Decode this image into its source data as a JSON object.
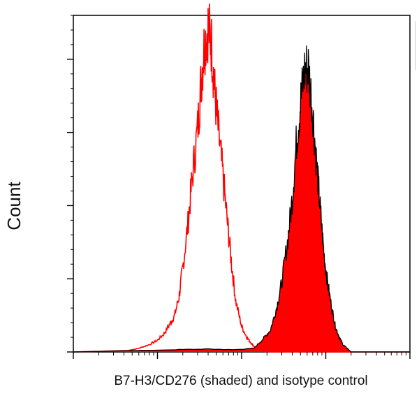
{
  "chart_data": {
    "type": "area",
    "title": "",
    "xlabel": "B7-H3/CD276 (shaded) and isotype control",
    "ylabel": "Count",
    "x_scale": "log",
    "xlim": [
      0.1,
      1000
    ],
    "ylim": [
      0,
      460
    ],
    "grid": false,
    "legend": "none",
    "colors": {
      "shaded": "#ff0000",
      "shaded_outline": "#000000",
      "isotype": "#ff0000",
      "axis": "#000000"
    },
    "series": [
      {
        "style": "outline",
        "color": "#ff0000",
        "x": [
          0.1,
          0.45,
          0.6,
          0.8,
          1.0,
          1.2,
          1.4,
          1.6,
          1.8,
          2.0,
          2.3,
          2.6,
          3.0,
          3.3,
          3.6,
          4.0,
          4.4,
          4.8,
          5.3,
          6.0,
          6.8,
          7.6,
          8.5,
          10.0,
          11.5,
          13.0,
          14.5,
          16.0,
          20.0,
          100.0,
          1000.0
        ],
        "y": [
          0,
          2,
          5,
          10,
          16,
          25,
          38,
          50,
          75,
          115,
          175,
          240,
          305,
          370,
          420,
          445,
          420,
          355,
          300,
          240,
          175,
          120,
          70,
          35,
          20,
          12,
          6,
          3,
          0,
          0,
          0
        ]
      },
      {
        "style": "filled",
        "color": "#ff0000",
        "x": [
          0.1,
          1.5,
          4.0,
          8.0,
          14.0,
          18.0,
          22.0,
          26.0,
          30.0,
          35.0,
          40.0,
          45.0,
          50.0,
          56.0,
          62.0,
          70.0,
          78.0,
          86.0,
          95.0,
          105.0,
          118.0,
          130.0,
          145.0,
          160.0,
          180.0,
          200.0,
          1000.0
        ],
        "y": [
          0,
          3,
          4,
          3,
          5,
          18,
          30,
          60,
          95,
          150,
          210,
          290,
          340,
          385,
          390,
          330,
          255,
          195,
          135,
          95,
          60,
          35,
          20,
          10,
          5,
          0,
          0
        ]
      }
    ]
  }
}
